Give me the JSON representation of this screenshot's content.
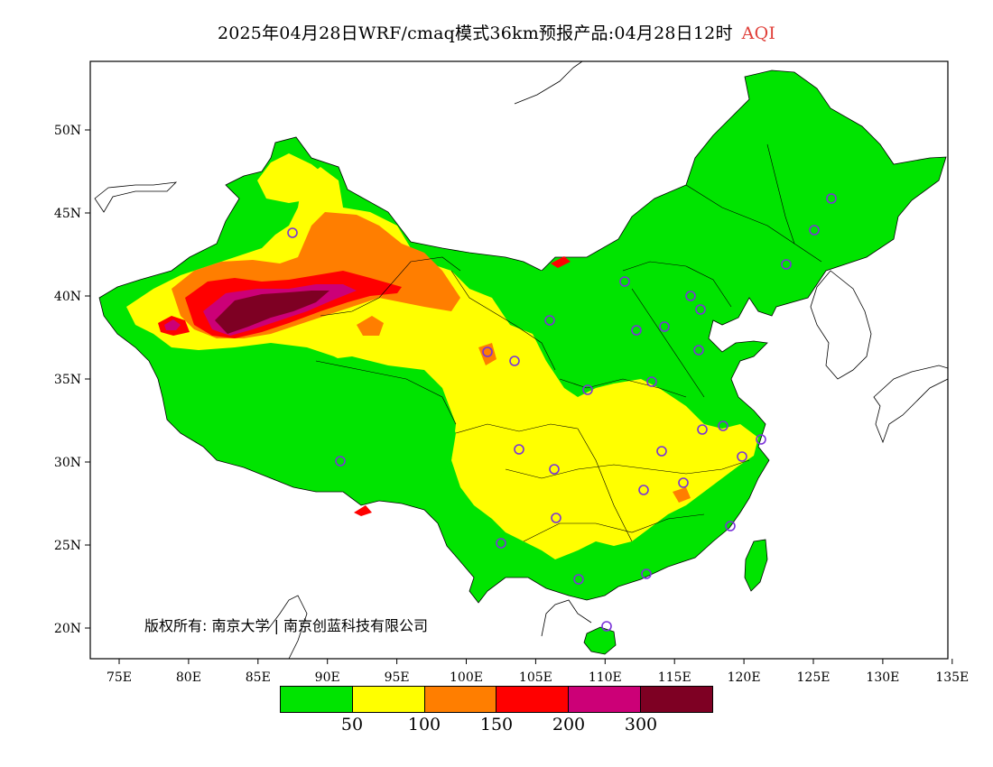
{
  "title": {
    "main": "2025年04月28日WRF/cmaq模式36km预报产品:04月28日12时",
    "variable": "AQI",
    "variable_color": "#e0403a"
  },
  "axes": {
    "lon_labels": [
      "75E",
      "80E",
      "85E",
      "90E",
      "95E",
      "100E",
      "105E",
      "110E",
      "115E",
      "120E",
      "125E",
      "130E",
      "135E"
    ],
    "lat_labels": [
      "50N",
      "45N",
      "40N",
      "35N",
      "30N",
      "25N",
      "20N"
    ]
  },
  "copyright": "版权所有: 南京大学 | 南京创蓝科技有限公司",
  "legend": {
    "colors": [
      "#00e400",
      "#ffff00",
      "#ff7e00",
      "#ff0000",
      "#cc0077",
      "#7e0023"
    ],
    "ticks": [
      "50",
      "100",
      "150",
      "200",
      "300"
    ]
  },
  "colors": {
    "good": "#00e400",
    "moderate": "#ffff00",
    "usg": "#ff7e00",
    "unhealthy": "#ff0000",
    "very_unhealthy": "#cc0077",
    "hazardous": "#7e0023",
    "station_ring": "#7a33d8"
  }
}
